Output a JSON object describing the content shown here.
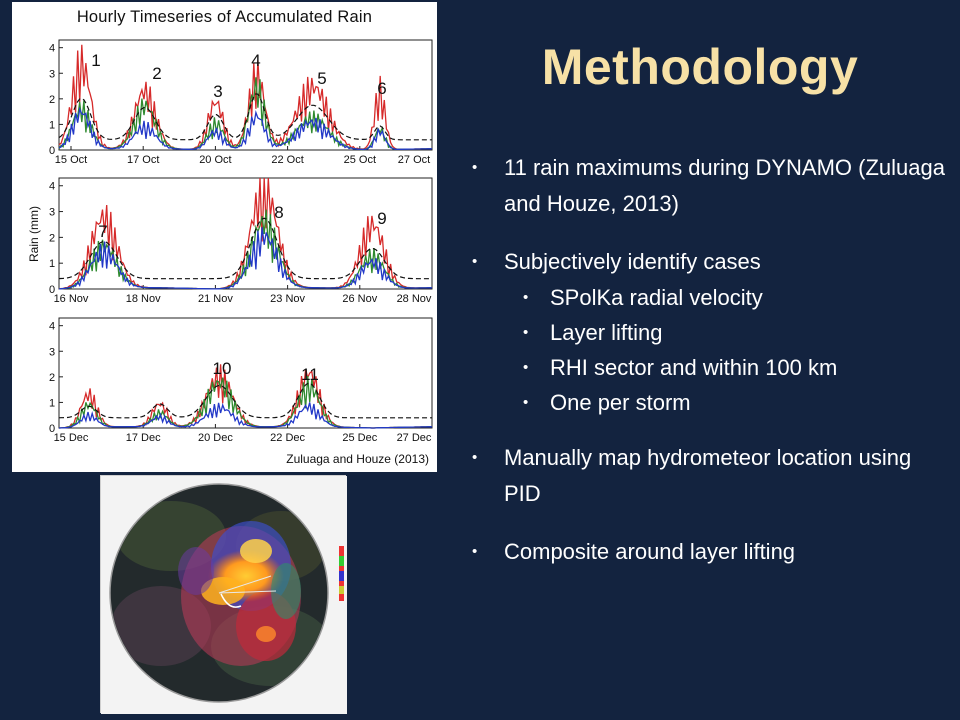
{
  "slide": {
    "title": "Methodology",
    "figure": {
      "title": "Hourly Timeseries of Accumulated Rain",
      "credit": "Zuluaga and Houze (2013)",
      "ylabel": "Rain (mm)",
      "case_labels": [
        "1",
        "2",
        "3",
        "4",
        "5",
        "6",
        "7",
        "8",
        "9",
        "10",
        "11"
      ],
      "panels": [
        {
          "name": "october",
          "ticks_y": [
            "4",
            "3",
            "2",
            "1",
            "0"
          ],
          "ticks_x": [
            "15 Oct",
            "17 Oct",
            "20 Oct",
            "22 Oct",
            "25 Oct",
            "27 Oct"
          ]
        },
        {
          "name": "november",
          "ticks_y": [
            "4",
            "3",
            "2",
            "1",
            "0"
          ],
          "ticks_x": [
            "16 Nov",
            "18 Nov",
            "21 Nov",
            "23 Nov",
            "26 Nov",
            "28 Nov"
          ]
        },
        {
          "name": "december",
          "ticks_y": [
            "4",
            "3",
            "2",
            "1",
            "0"
          ],
          "ticks_x": [
            "15 Dec",
            "17 Dec",
            "20 Dec",
            "22 Dec",
            "25 Dec",
            "27 Dec"
          ]
        }
      ],
      "series_colors": {
        "red": "#d62a2a",
        "green": "#2f8a2f",
        "blue": "#2238c8",
        "black_dashed": "#111111"
      }
    },
    "bullets": [
      {
        "text": "11 rain maximums during DYNAMO (Zuluaga and Houze, 2013)",
        "sub": []
      },
      {
        "text": "Subjectively identify cases",
        "sub": [
          "SPolKa radial velocity",
          "Layer lifting",
          "RHI sector and within 100 km",
          "One per storm"
        ]
      },
      {
        "text": "Manually map hydrometeor location using PID",
        "sub": []
      },
      {
        "text": "Composite around layer lifting",
        "sub": []
      }
    ],
    "colors": {
      "background": "#13233f",
      "title": "#f7e1a6",
      "text": "#ffffff"
    }
  }
}
